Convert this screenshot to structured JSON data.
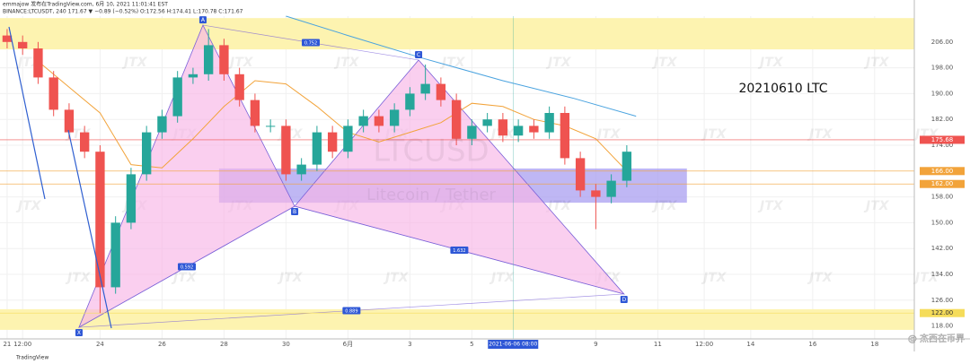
{
  "chart_data": {
    "type": "candlestick",
    "header": [
      "emmajow 发布在TradingView.com, 6月 10, 2021 11:01:41 EST",
      "BINANCE:LTCUSDT, 240  171.67 ▼ −0.89 (−0.52%) O:172.56 H:174.41 L:170.78 C:171.67"
    ],
    "annotation": "20210610 LTC",
    "symbol_watermark": "LTCUSD",
    "symbol_subtitle": "Litecoin / Tether",
    "brand_watermark": "JTX",
    "author": "@ 杰西在币界",
    "logo": "TradingView",
    "xlim": [
      -0.23,
      29.28
    ],
    "ylim": [
      114,
      214
    ],
    "grid": true,
    "xticks": [
      {
        "value": 0,
        "label": "21"
      },
      {
        "value": 0.5,
        "label": "12:00"
      },
      {
        "value": 3,
        "label": "24"
      },
      {
        "value": 5,
        "label": "26"
      },
      {
        "value": 7,
        "label": "28"
      },
      {
        "value": 9,
        "label": "30"
      },
      {
        "value": 11,
        "label": "6月"
      },
      {
        "value": 13,
        "label": "3"
      },
      {
        "value": 15,
        "label": "5"
      },
      {
        "value": 19,
        "label": "9"
      },
      {
        "value": 21,
        "label": "11"
      },
      {
        "value": 22.5,
        "label": "12:00"
      },
      {
        "value": 24,
        "label": "14"
      },
      {
        "value": 26,
        "label": "16"
      },
      {
        "value": 28,
        "label": "18"
      }
    ],
    "yticks": [
      {
        "value": 118,
        "label": "118.00"
      },
      {
        "value": 126,
        "label": "126.00"
      },
      {
        "value": 134,
        "label": "134.00"
      },
      {
        "value": 142,
        "label": "142.00"
      },
      {
        "value": 150,
        "label": "150.00"
      },
      {
        "value": 158,
        "label": "158.00"
      },
      {
        "value": 174,
        "label": "174.00"
      },
      {
        "value": 182,
        "label": "182.00"
      },
      {
        "value": 190,
        "label": "190.00"
      },
      {
        "value": 198,
        "label": "198.00"
      },
      {
        "value": 206,
        "label": "206.00"
      }
    ],
    "time_marker": {
      "value": 16.33,
      "label": "2021-06-06 08:00",
      "color": "#26a69a"
    },
    "price_markers": [
      {
        "value": 175.68,
        "label": "175.68",
        "color": "#ef5350"
      },
      {
        "value": 166,
        "label": "166.00",
        "color": "#f2a33a"
      },
      {
        "value": 162,
        "label": "162.00",
        "color": "#f2a33a"
      },
      {
        "value": 122,
        "label": "122.00",
        "color": "#f5dc5a"
      }
    ],
    "up_color": "#26a69a",
    "down_color": "#ef5350",
    "candles": {
      "x": [
        0,
        0.5,
        1,
        1.5,
        2,
        2.5,
        3,
        3.5,
        4,
        4.5,
        5,
        5.5,
        6,
        6.5,
        7,
        7.5,
        8,
        8.5,
        9,
        9.5,
        10,
        10.5,
        11,
        11.5,
        12,
        12.5,
        13,
        13.5,
        14,
        14.5,
        15,
        15.5,
        16,
        16.5,
        17,
        17.5,
        18,
        18.5,
        19,
        19.5,
        20
      ],
      "open": [
        208,
        206,
        204,
        195,
        185,
        178,
        172,
        130,
        150,
        165,
        178,
        183,
        195,
        196,
        205,
        196,
        188,
        180,
        180,
        165,
        168,
        178,
        172,
        180,
        183,
        180,
        185,
        190,
        193,
        188,
        176,
        180,
        182,
        177,
        180,
        178,
        184,
        170,
        160,
        158,
        163
      ],
      "high": [
        210,
        208,
        206,
        197,
        187,
        180,
        174,
        152,
        167,
        180,
        185,
        197,
        198,
        210,
        207,
        198,
        190,
        182,
        182,
        170,
        180,
        180,
        182,
        185,
        185,
        187,
        192,
        199,
        195,
        190,
        182,
        184,
        184,
        182,
        182,
        186,
        186,
        172,
        162,
        165,
        174
      ],
      "low": [
        204,
        202,
        193,
        183,
        176,
        170,
        122,
        128,
        148,
        163,
        176,
        181,
        193,
        194,
        194,
        186,
        178,
        178,
        163,
        163,
        166,
        170,
        170,
        178,
        178,
        178,
        183,
        188,
        186,
        174,
        174,
        178,
        175,
        175,
        176,
        176,
        168,
        158,
        148,
        156,
        161
      ],
      "close": [
        206,
        204,
        195,
        185,
        178,
        172,
        130,
        150,
        165,
        178,
        183,
        195,
        196,
        205,
        196,
        188,
        180,
        180,
        165,
        168,
        178,
        172,
        180,
        183,
        180,
        185,
        190,
        193,
        188,
        176,
        180,
        182,
        177,
        180,
        178,
        184,
        170,
        160,
        158,
        163,
        172
      ]
    },
    "series": [
      {
        "name": "MA slow",
        "color": "#4aa3df",
        "x": [
          9,
          11,
          13.4,
          16,
          18.3,
          20.3
        ],
        "values": [
          214,
          208,
          201,
          194,
          188.5,
          183
        ]
      },
      {
        "name": "MA fast",
        "color": "#f2a33a",
        "x": [
          1,
          2,
          3,
          4,
          5,
          6,
          7,
          8,
          9,
          10,
          11,
          12,
          13,
          14,
          15,
          16,
          17,
          18,
          19,
          20
        ],
        "values": [
          200,
          192,
          184,
          168,
          167,
          176,
          186,
          194,
          193,
          186,
          178,
          175,
          178,
          181,
          187,
          186,
          182,
          180,
          176,
          166
        ]
      }
    ],
    "zones": [
      {
        "x": [
          -0.23,
          29.28
        ],
        "y": [
          203.7,
          213.4
        ],
        "color": "#fdf3b0"
      },
      {
        "x": [
          -0.23,
          29.28
        ],
        "y": [
          116.8,
          123.2
        ],
        "color": "#fdf3b0"
      },
      {
        "x": [
          6.84,
          21.94
        ],
        "y": [
          156.2,
          166.8
        ],
        "color": "#a99ff0"
      }
    ],
    "pattern": {
      "points": [
        {
          "label": "X",
          "x": 2.32,
          "y": 117.6
        },
        {
          "label": "A",
          "x": 6.32,
          "y": 211.2
        },
        {
          "label": "B",
          "x": 9.28,
          "y": 155.1
        },
        {
          "label": "C",
          "x": 13.28,
          "y": 200.4
        },
        {
          "label": "D",
          "x": 19.91,
          "y": 127.9
        }
      ],
      "ratios": [
        {
          "from": 1,
          "to": 3,
          "value": 0.752
        },
        {
          "from": 0,
          "to": 2,
          "value": 0.592
        },
        {
          "from": 2,
          "to": 4,
          "value": 1.632
        },
        {
          "from": 0,
          "to": 4,
          "value": 0.889
        }
      ]
    }
  }
}
